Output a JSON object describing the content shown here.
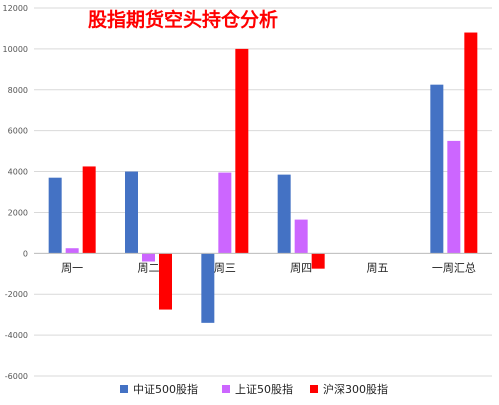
{
  "chart_data": {
    "type": "bar",
    "title": "股指期货空头持仓分析",
    "title_color": "#ff0000",
    "categories": [
      "周一",
      "周二",
      "周三",
      "周四",
      "周五",
      "一周汇总"
    ],
    "series": [
      {
        "name": "中证500股指",
        "color": "#4472c4",
        "values": [
          3700,
          4000,
          -3400,
          3850,
          0,
          8250
        ]
      },
      {
        "name": "上证50股指",
        "color": "#cc66ff",
        "values": [
          250,
          -400,
          3950,
          1650,
          0,
          5500
        ]
      },
      {
        "name": "沪深300股指",
        "color": "#ff0000",
        "values": [
          4250,
          -2750,
          10000,
          -750,
          0,
          10800
        ]
      }
    ],
    "ylim": [
      -6000,
      12000
    ],
    "yticks": [
      -6000,
      -4000,
      -2000,
      0,
      2000,
      4000,
      6000,
      8000,
      10000,
      12000
    ],
    "grid": true,
    "legend_position": "bottom"
  }
}
